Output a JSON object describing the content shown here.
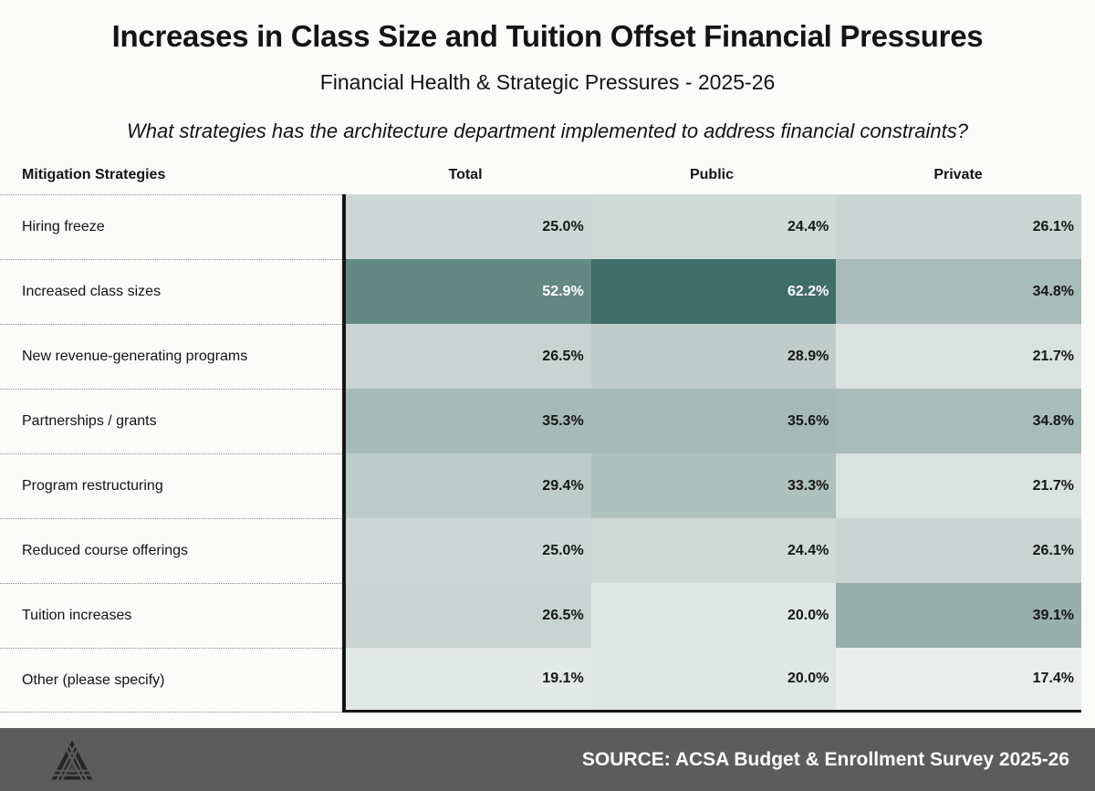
{
  "chart_data": {
    "type": "heatmap",
    "title": "Increases in Class Size and Tuition Offset Financial Pressures",
    "subtitle": "Financial Health & Strategic Pressures - 2025-26",
    "question": "What strategies has the architecture department implemented to address financial constraints?",
    "row_header": "Mitigation Strategies",
    "columns": [
      "Total",
      "Public",
      "Private"
    ],
    "rows": [
      {
        "label": "Hiring freeze",
        "values": [
          25.0,
          24.4,
          26.1
        ]
      },
      {
        "label": "Increased class sizes",
        "values": [
          52.9,
          62.2,
          34.8
        ]
      },
      {
        "label": "New revenue-generating programs",
        "values": [
          26.5,
          28.9,
          21.7
        ]
      },
      {
        "label": "Partnerships / grants",
        "values": [
          35.3,
          35.6,
          34.8
        ]
      },
      {
        "label": "Program restructuring",
        "values": [
          29.4,
          33.3,
          21.7
        ]
      },
      {
        "label": "Reduced course offerings",
        "values": [
          25.0,
          24.4,
          26.1
        ]
      },
      {
        "label": "Tuition increases",
        "values": [
          26.5,
          20.0,
          39.1
        ]
      },
      {
        "label": "Other (please specify)",
        "values": [
          19.1,
          20.0,
          17.4
        ]
      }
    ],
    "value_format": "percent_1dp",
    "color_scale": {
      "min": 17.4,
      "max": 62.2,
      "min_color": "#e9eeec",
      "max_color": "#416e68",
      "white_text_threshold": 50,
      "dark_text_color": "#161616",
      "light_text_color": "#ffffff"
    },
    "grid": "dotted-row-separators-left-column",
    "legend": "none"
  },
  "footer": {
    "source_label": "SOURCE: ACSA Budget & Enrollment Survey 2025-26",
    "logo": "acsa-triangle-logo",
    "bar_color": "#5c5c5c",
    "logo_color": "#262626"
  }
}
